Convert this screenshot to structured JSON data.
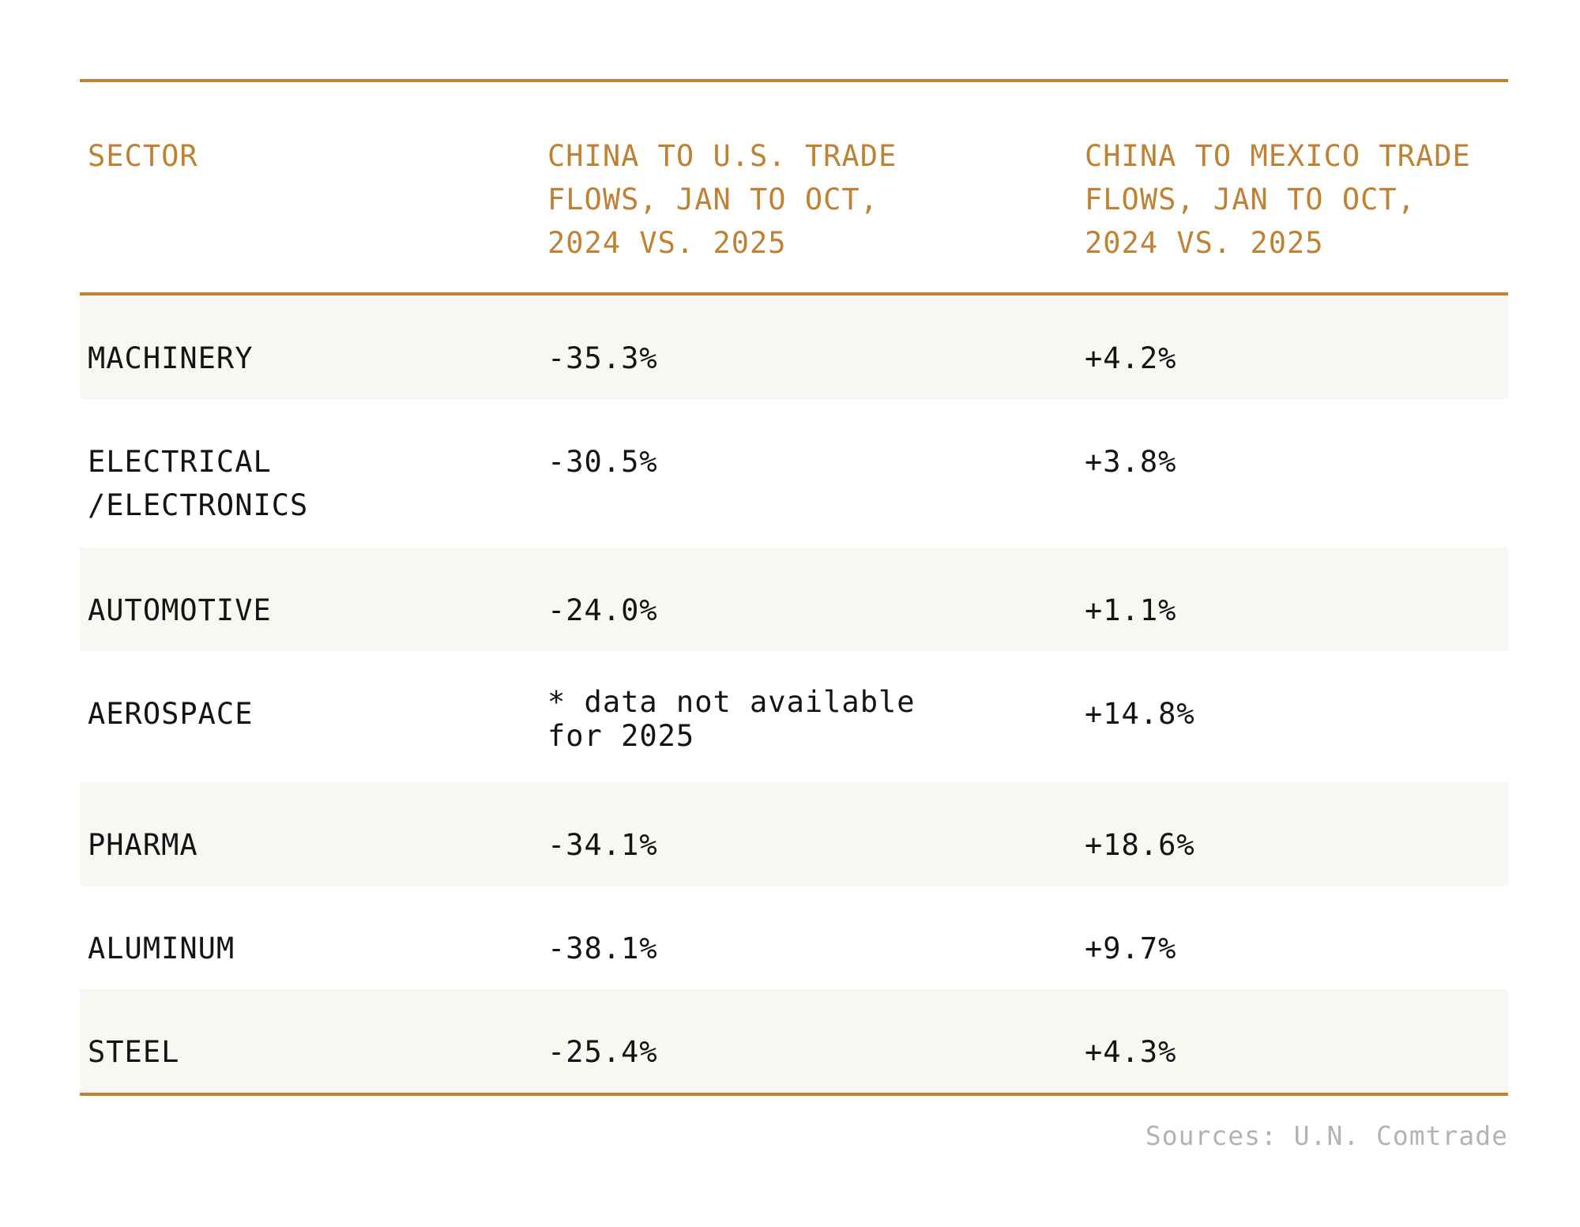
{
  "chart_data": {
    "type": "table",
    "headers": [
      [
        "SECTOR"
      ],
      [
        "CHINA TO U.S. TRADE",
        "FLOWS, JAN TO OCT,",
        "2024 VS. 2025"
      ],
      [
        "CHINA TO MEXICO TRADE",
        "FLOWS, JAN TO OCT,",
        "2024 VS. 2025"
      ]
    ],
    "rows": [
      {
        "sector": [
          "MACHINERY"
        ],
        "us": [
          "-35.3%"
        ],
        "mexico": "+4.2%"
      },
      {
        "sector": [
          "ELECTRICAL",
          "/ELECTRONICS"
        ],
        "us": [
          "-30.5%"
        ],
        "mexico": "+3.8%"
      },
      {
        "sector": [
          "AUTOMOTIVE"
        ],
        "us": [
          "-24.0%"
        ],
        "mexico": "+1.1%"
      },
      {
        "sector": [
          "AEROSPACE"
        ],
        "us": [
          "* data not available",
          "for 2025"
        ],
        "mexico": "+14.8%"
      },
      {
        "sector": [
          "PHARMA"
        ],
        "us": [
          "-34.1%"
        ],
        "mexico": "+18.6%"
      },
      {
        "sector": [
          "ALUMINUM"
        ],
        "us": [
          "-38.1%"
        ],
        "mexico": "+9.7%"
      },
      {
        "sector": [
          "STEEL"
        ],
        "us": [
          "-25.4%"
        ],
        "mexico": "+4.3%"
      }
    ]
  },
  "source": "Sources: U.N. Comtrade",
  "colors": {
    "accent": "#bf8235",
    "row_shade": "#f9f7f3",
    "text": "#141414",
    "source_text": "#b3b3b3"
  }
}
